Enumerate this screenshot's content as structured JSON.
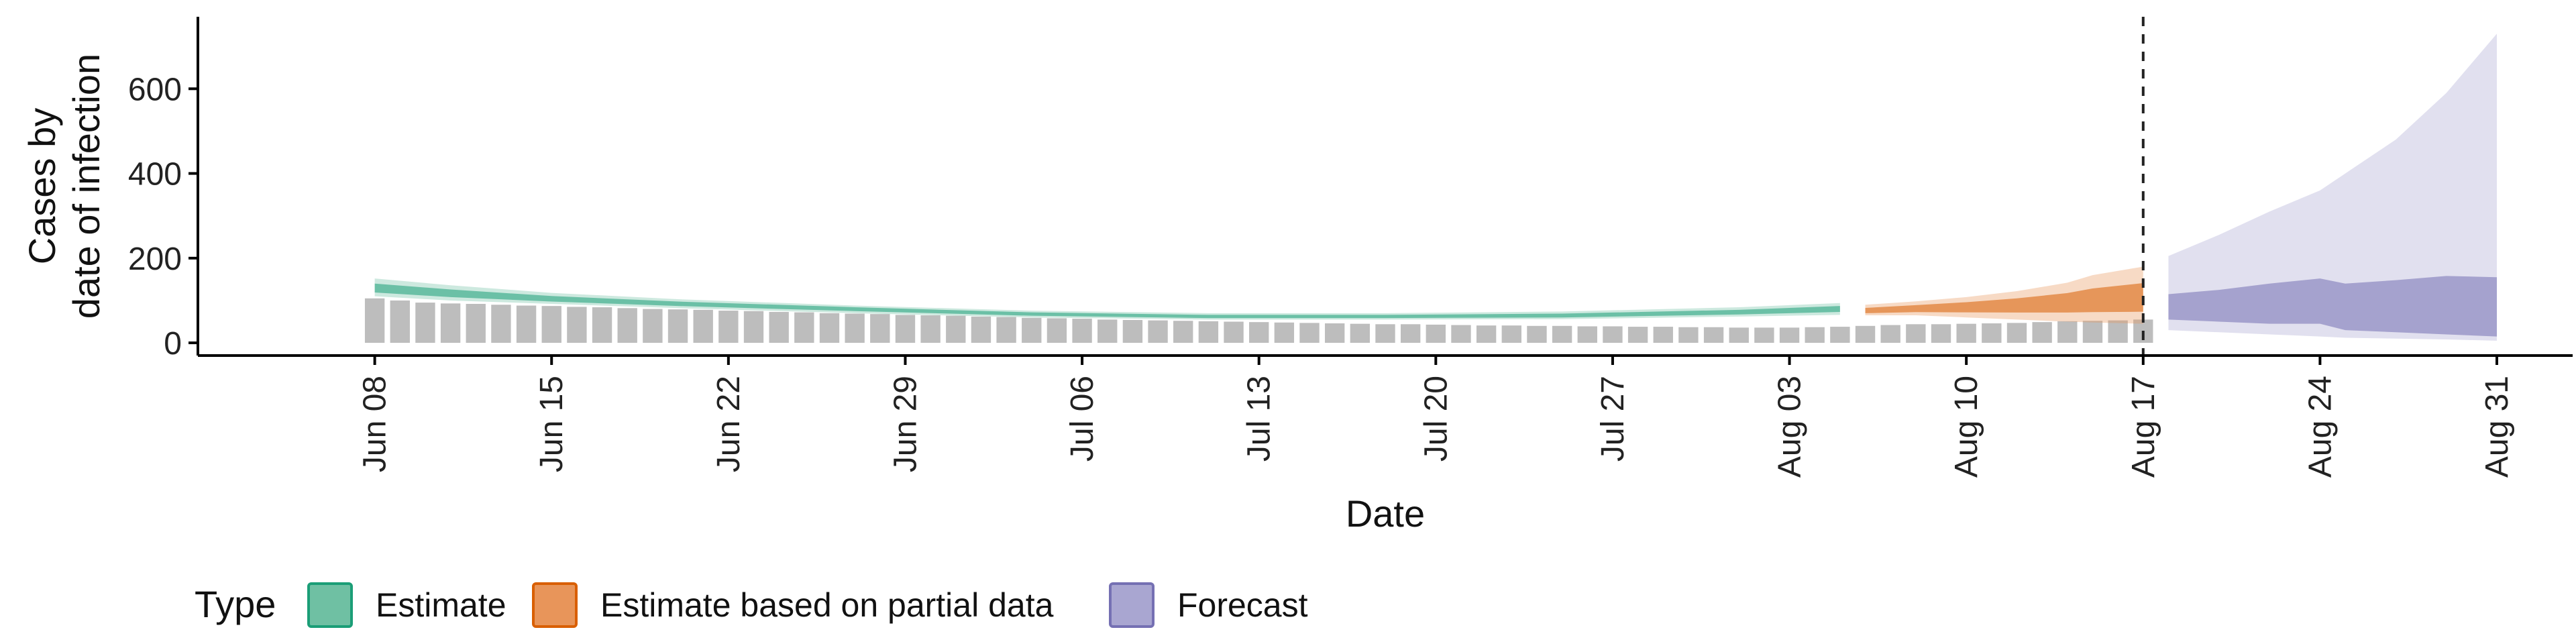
{
  "chart_data": {
    "type": "area",
    "xlabel": "Date",
    "ylabel_lines": [
      "Cases by",
      "date of infection"
    ],
    "yticks": [
      0,
      200,
      400,
      600
    ],
    "ylim": [
      -30,
      770
    ],
    "xlim": [
      "2020-06-01",
      "2020-09-03"
    ],
    "xticks": [
      {
        "date": "2020-06-08",
        "label": "Jun 08"
      },
      {
        "date": "2020-06-15",
        "label": "Jun 15"
      },
      {
        "date": "2020-06-22",
        "label": "Jun 22"
      },
      {
        "date": "2020-06-29",
        "label": "Jun 29"
      },
      {
        "date": "2020-07-06",
        "label": "Jul 06"
      },
      {
        "date": "2020-07-13",
        "label": "Jul 13"
      },
      {
        "date": "2020-07-20",
        "label": "Jul 20"
      },
      {
        "date": "2020-07-27",
        "label": "Jul 27"
      },
      {
        "date": "2020-08-03",
        "label": "Aug 03"
      },
      {
        "date": "2020-08-10",
        "label": "Aug 10"
      },
      {
        "date": "2020-08-17",
        "label": "Aug 17"
      },
      {
        "date": "2020-08-24",
        "label": "Aug 24"
      },
      {
        "date": "2020-08-31",
        "label": "Aug 31"
      }
    ],
    "forecast_line_date": "2020-08-17",
    "reported_cases": {
      "start_date": "2020-06-08",
      "values": [
        105,
        100,
        95,
        93,
        92,
        90,
        88,
        87,
        85,
        84,
        82,
        80,
        79,
        78,
        76,
        75,
        73,
        72,
        70,
        69,
        68,
        66,
        65,
        64,
        62,
        61,
        59,
        58,
        57,
        55,
        54,
        53,
        52,
        51,
        50,
        49,
        48,
        47,
        46,
        45,
        44,
        44,
        43,
        42,
        41,
        41,
        40,
        40,
        39,
        39,
        38,
        38,
        37,
        37,
        36,
        36,
        36,
        37,
        38,
        40,
        42,
        44,
        44,
        45,
        46,
        47,
        49,
        51,
        52,
        53,
        55
      ]
    },
    "series": [
      {
        "name": "Estimate",
        "color": "#1b9e77",
        "fill": "#6fc0a3",
        "dates": [
          "2020-06-08",
          "2020-06-11",
          "2020-06-15",
          "2020-06-20",
          "2020-06-27",
          "2020-07-04",
          "2020-07-11",
          "2020-07-18",
          "2020-07-25",
          "2020-08-01",
          "2020-08-05"
        ],
        "median": [
          128,
          116,
          103,
          92,
          80,
          68,
          62,
          62,
          64,
          72,
          80
        ],
        "lower90": [
          110,
          100,
          92,
          82,
          70,
          60,
          55,
          55,
          56,
          62,
          66
        ],
        "upper90": [
          152,
          136,
          118,
          103,
          88,
          76,
          70,
          70,
          74,
          84,
          94
        ]
      },
      {
        "name": "Estimate based on partial data",
        "color": "#d95f02",
        "fill": "#e8955a",
        "dates": [
          "2020-08-06",
          "2020-08-08",
          "2020-08-10",
          "2020-08-12",
          "2020-08-14",
          "2020-08-15",
          "2020-08-17"
        ],
        "median": [
          75,
          80,
          84,
          88,
          93,
          97,
          102
        ],
        "lower90": [
          65,
          65,
          60,
          55,
          50,
          48,
          45
        ],
        "upper90": [
          90,
          98,
          108,
          122,
          142,
          160,
          180
        ]
      },
      {
        "name": "Forecast",
        "color": "#7570b3",
        "fill": "#a9a6d1",
        "dates": [
          "2020-08-18",
          "2020-08-20",
          "2020-08-22",
          "2020-08-24",
          "2020-08-25",
          "2020-08-27",
          "2020-08-29",
          "2020-08-31"
        ],
        "median": [
          80,
          92,
          98,
          105,
          100,
          104,
          108,
          110
        ],
        "lower50": [
          55,
          50,
          45,
          45,
          30,
          25,
          20,
          15
        ],
        "upper50": [
          115,
          125,
          140,
          152,
          140,
          148,
          158,
          155
        ],
        "lower90": [
          30,
          25,
          20,
          15,
          12,
          10,
          8,
          5
        ],
        "upper90": [
          205,
          255,
          310,
          360,
          400,
          480,
          590,
          730
        ]
      }
    ],
    "legend": {
      "title": "Type",
      "placement": "bottom-left",
      "items": [
        "Estimate",
        "Estimate based on partial data",
        "Forecast"
      ]
    }
  }
}
